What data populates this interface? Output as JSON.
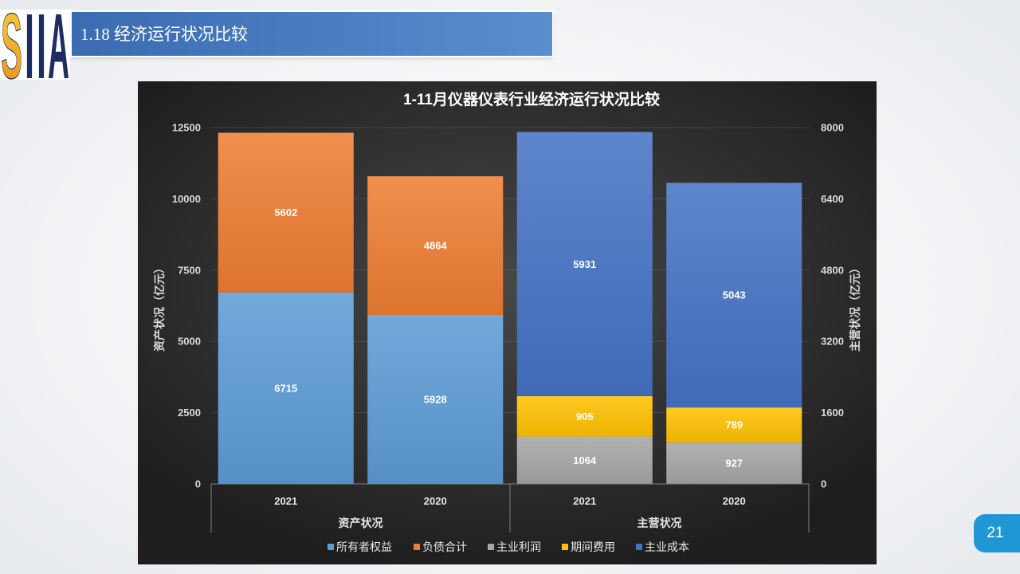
{
  "slide": {
    "title": "1.18 经济运行状况比较",
    "page_number": "21"
  },
  "logo": {
    "letters": [
      "S",
      "I",
      "I",
      "A"
    ]
  },
  "colors": {
    "title_bar": "#4A7EC2",
    "page_badge": "#1F97D4",
    "chart_background": "#333333"
  },
  "chart_data": {
    "type": "bar",
    "stacked": true,
    "title": "1-11月仪器仪表行业经济运行状况比较",
    "groups": [
      {
        "name": "资产状况",
        "axis": "left",
        "categories": [
          "2021",
          "2020"
        ],
        "series": [
          {
            "name": "所有者权益",
            "values": [
              6715,
              5928
            ],
            "color": "#5B9BD5"
          },
          {
            "name": "负债合计",
            "values": [
              5602,
              4864
            ],
            "color": "#ED7D31"
          }
        ]
      },
      {
        "name": "主营状况",
        "axis": "right",
        "categories": [
          "2021",
          "2020"
        ],
        "series": [
          {
            "name": "主业利润",
            "values": [
              1064,
              927
            ],
            "color": "#A5A5A5"
          },
          {
            "name": "期间费用",
            "values": [
              905,
              789
            ],
            "color": "#FFC000"
          },
          {
            "name": "主业成本",
            "values": [
              5931,
              5043
            ],
            "color": "#4472C4"
          }
        ]
      }
    ],
    "y_left": {
      "label": "资产状况（亿元）",
      "ylim": [
        0,
        12500
      ],
      "ticks": [
        0,
        2500,
        5000,
        7500,
        10000,
        12500
      ]
    },
    "y_right": {
      "label": "主营状况（亿元）",
      "ylim": [
        0,
        8000
      ],
      "ticks": [
        0,
        1600,
        3200,
        4800,
        6400,
        8000
      ]
    },
    "grid": true,
    "legend": "bottom",
    "data_labels": true
  }
}
